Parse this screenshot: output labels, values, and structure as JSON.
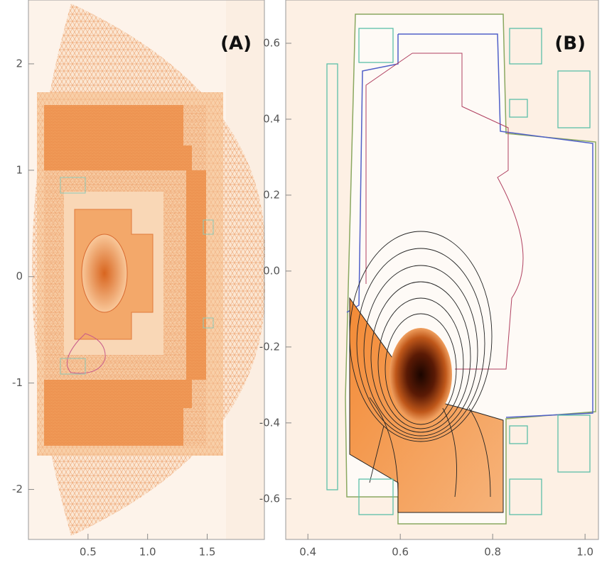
{
  "chart_data": [
    {
      "type": "mesh",
      "title": "(A)",
      "xlim": [
        0,
        1.98
      ],
      "xticks": [
        0.5,
        {
          "value": 1,
          "label": "1.0"
        },
        1.5
      ],
      "ylim": [
        -2.47,
        2.6
      ],
      "yticks": [
        2,
        1,
        0,
        -1,
        -2
      ]
    },
    {
      "type": "contour",
      "title": "(B)",
      "xlim": [
        0.352,
        1.029
      ],
      "xticks": [
        0.4,
        0.6,
        0.8,
        {
          "value": 1,
          "label": "1.0"
        }
      ],
      "ylim": [
        -0.707,
        0.714
      ],
      "yticks": [
        0.6,
        0.4,
        0.2,
        {
          "value": 0,
          "label": "0.0"
        },
        -0.2,
        -0.4,
        -0.6
      ]
    }
  ]
}
